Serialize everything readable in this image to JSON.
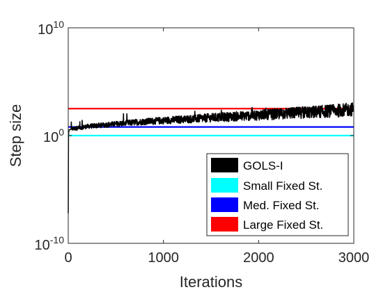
{
  "chart_data": {
    "type": "line",
    "title": "",
    "xlabel": "Iterations",
    "ylabel": "Step size",
    "xlim": [
      0,
      3000
    ],
    "ylim_exponent": [
      -10,
      10
    ],
    "yscale": "log",
    "grid": false,
    "x_ticks": [
      {
        "value": 0,
        "label": "0"
      },
      {
        "value": 1000,
        "label": "1000"
      },
      {
        "value": 2000,
        "label": "2000"
      },
      {
        "value": 3000,
        "label": "3000"
      }
    ],
    "y_ticks": [
      {
        "exponent": -10,
        "base": "10",
        "exp": "-10"
      },
      {
        "exponent": 0,
        "base": "10",
        "exp": "0"
      },
      {
        "exponent": 10,
        "base": "10",
        "exp": "10"
      }
    ],
    "legend_placement": "bottom-right",
    "series": [
      {
        "name": "GOLS-I",
        "color": "#000000",
        "style": "noisy",
        "x": [
          0,
          2,
          4,
          8,
          15,
          30,
          60,
          100,
          200,
          400,
          600,
          800,
          1000,
          1200,
          1400,
          1600,
          1800,
          2000,
          2200,
          2400,
          2600,
          2800,
          3000
        ],
        "log10_y": [
          -7.2,
          -0.5,
          0.3,
          0.5,
          0.55,
          0.6,
          0.65,
          0.7,
          0.85,
          1.0,
          1.15,
          1.3,
          1.4,
          1.5,
          1.6,
          1.7,
          1.8,
          1.9,
          2.0,
          2.1,
          2.2,
          2.3,
          2.45
        ]
      },
      {
        "name": "Small Fixed St.",
        "color": "#00ffff",
        "style": "flat",
        "log10_y_const": 0.0
      },
      {
        "name": "Med. Fixed St.",
        "color": "#0000ff",
        "style": "flat",
        "log10_y_const": 0.8
      },
      {
        "name": "Large Fixed St.",
        "color": "#ff0000",
        "style": "flat",
        "log10_y_const": 2.5
      }
    ]
  }
}
